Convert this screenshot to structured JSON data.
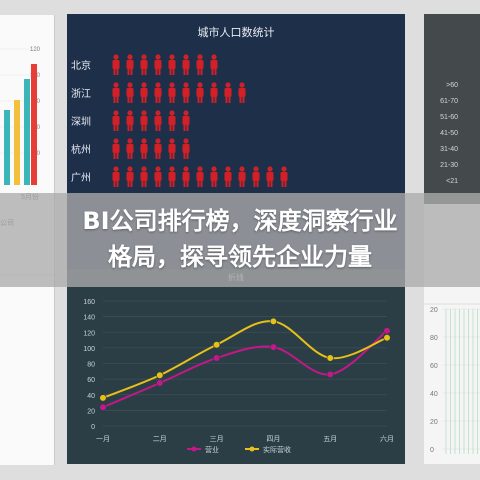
{
  "banner": {
    "line1": "BI公司排行榜，深度洞察行业",
    "line2": "格局，探寻领先企业力量"
  },
  "left_panel": {
    "ticks": [
      "120",
      "100",
      "80",
      "60",
      "40"
    ],
    "caption": "5月份",
    "footer": "公司"
  },
  "right_panel": {
    "ranges": [
      ">60",
      "61-70",
      "51-60",
      "41-50",
      "31-40",
      "21-30",
      "<21"
    ],
    "ticks": [
      "20",
      "80",
      "60",
      "40",
      "20",
      "0"
    ]
  },
  "population_chart": {
    "title": "城市人口数统计",
    "cities": [
      "北京",
      "浙江",
      "深圳",
      "杭州",
      "广州"
    ],
    "icons_per_row": [
      8,
      10,
      6,
      6,
      13
    ],
    "icon_color": "#d32026"
  },
  "chart_data": {
    "type": "line",
    "title": "折线",
    "categories": [
      "一月",
      "二月",
      "三月",
      "四月",
      "五月",
      "六月"
    ],
    "ylim": [
      0,
      160
    ],
    "yticks": [
      0,
      20,
      40,
      60,
      80,
      100,
      120,
      140,
      160
    ],
    "series": [
      {
        "name": "营业",
        "color": "#c2188a",
        "values": [
          24,
          55,
          87,
          101,
          66,
          122
        ]
      },
      {
        "name": "实际营收",
        "color": "#e7c018",
        "values": [
          36,
          65,
          104,
          134,
          87,
          113
        ]
      }
    ],
    "grid": true,
    "legend": "bottom"
  },
  "colors": {
    "center_bg": "#1e2f4a",
    "lower_bg": "#2b3e46",
    "bar_teal": "#3ab5b8",
    "bar_red": "#e83c36"
  }
}
